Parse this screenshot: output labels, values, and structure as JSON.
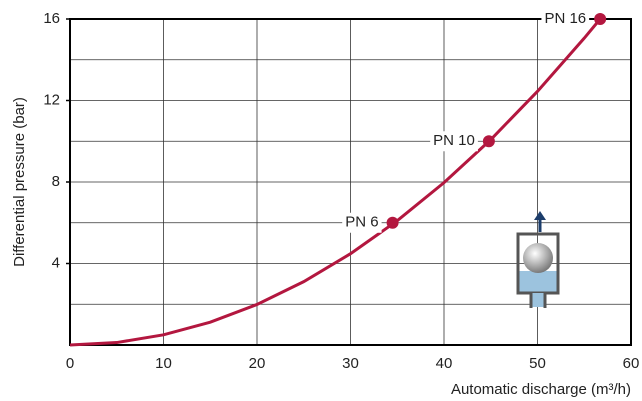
{
  "chart_data": {
    "type": "line",
    "x_label": "Automatic discharge (m³/h)",
    "y_label": "Differential pressure (bar)",
    "xlim": [
      0,
      60
    ],
    "xticks": [
      0,
      10,
      20,
      30,
      40,
      50,
      60
    ],
    "ylim": [
      0,
      16
    ],
    "yticks": [
      4,
      8,
      12,
      16
    ],
    "y_grid_lines": [
      2,
      4,
      6,
      8,
      10,
      12,
      14
    ],
    "grid": true,
    "x": [
      0,
      5,
      10,
      15,
      20,
      25,
      30,
      35,
      40,
      45,
      50,
      55,
      56.7
    ],
    "series": [
      {
        "color": "#b3173f",
        "values": [
          0,
          0.12,
          0.5,
          1.12,
          1.99,
          3.11,
          4.48,
          6.1,
          7.97,
          10.08,
          12.45,
          15.06,
          16
        ]
      }
    ],
    "points": [
      {
        "label": "PN 6",
        "x": 34.5,
        "y": 6
      },
      {
        "label": "PN 10",
        "x": 44.8,
        "y": 10
      },
      {
        "label": "PN 16",
        "x": 56.7,
        "y": 16
      }
    ]
  }
}
